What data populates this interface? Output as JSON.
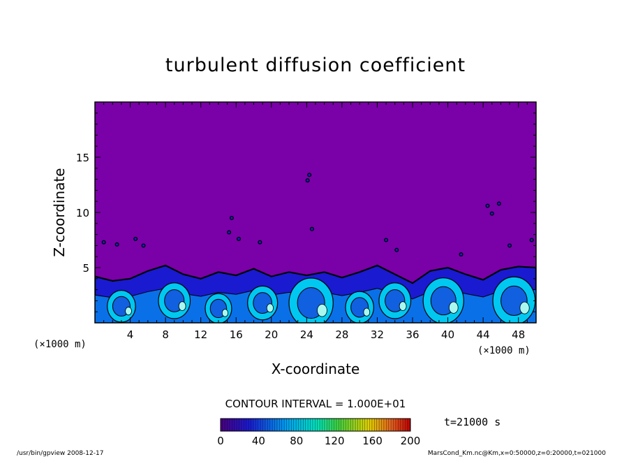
{
  "chart_data": {
    "type": "heatmap",
    "title": "turbulent diffusion coefficient",
    "xlabel": "X-coordinate",
    "ylabel": "Z-coordinate",
    "x_unit": "(×1000 m)",
    "y_unit": "(×1000 m)",
    "xlim": [
      0,
      50
    ],
    "ylim": [
      0,
      20
    ],
    "x_ticks": [
      4,
      8,
      12,
      16,
      20,
      24,
      28,
      32,
      36,
      40,
      44,
      48
    ],
    "y_ticks": [
      5,
      10,
      15
    ],
    "contour_interval": "CONTOUR INTERVAL = 1.000E+01",
    "time_label": "t=21000 s",
    "colorbar": {
      "min": 0,
      "max": 200,
      "ticks": [
        0,
        40,
        80,
        120,
        160,
        200
      ]
    },
    "colors": {
      "background_field": "#7a00a8",
      "low": "#1a1ad0",
      "mid": "#00c8f0",
      "high": "#a8f8f0"
    },
    "mixed_layer_top": [
      [
        0,
        4.2
      ],
      [
        2,
        3.8
      ],
      [
        4,
        4.0
      ],
      [
        6,
        4.7
      ],
      [
        8,
        5.2
      ],
      [
        10,
        4.4
      ],
      [
        12,
        4.0
      ],
      [
        14,
        4.6
      ],
      [
        16,
        4.3
      ],
      [
        18,
        4.9
      ],
      [
        20,
        4.2
      ],
      [
        22,
        4.6
      ],
      [
        24,
        4.3
      ],
      [
        26,
        4.6
      ],
      [
        28,
        4.1
      ],
      [
        30,
        4.6
      ],
      [
        32,
        5.2
      ],
      [
        34,
        4.4
      ],
      [
        36,
        3.6
      ],
      [
        38,
        4.7
      ],
      [
        40,
        5.0
      ],
      [
        42,
        4.4
      ],
      [
        44,
        3.9
      ],
      [
        46,
        4.8
      ],
      [
        48,
        5.1
      ],
      [
        50,
        5.0
      ]
    ],
    "eddies": [
      {
        "x": 3,
        "z": 1.5,
        "r": 1.6
      },
      {
        "x": 9,
        "z": 2.0,
        "r": 1.8
      },
      {
        "x": 14,
        "z": 1.3,
        "r": 1.5
      },
      {
        "x": 19,
        "z": 1.8,
        "r": 1.7
      },
      {
        "x": 24.5,
        "z": 1.8,
        "r": 2.5
      },
      {
        "x": 30,
        "z": 1.4,
        "r": 1.6
      },
      {
        "x": 34,
        "z": 2.0,
        "r": 1.8
      },
      {
        "x": 39.5,
        "z": 2.0,
        "r": 2.3
      },
      {
        "x": 47.5,
        "z": 2.0,
        "r": 2.4
      }
    ],
    "blobs": [
      {
        "x": 1.0,
        "z": 7.3
      },
      {
        "x": 2.5,
        "z": 7.1
      },
      {
        "x": 4.6,
        "z": 7.6
      },
      {
        "x": 5.5,
        "z": 7.0
      },
      {
        "x": 15.2,
        "z": 8.2
      },
      {
        "x": 15.5,
        "z": 9.5
      },
      {
        "x": 16.3,
        "z": 7.6
      },
      {
        "x": 18.7,
        "z": 7.3
      },
      {
        "x": 24.1,
        "z": 12.9
      },
      {
        "x": 24.3,
        "z": 13.4
      },
      {
        "x": 24.6,
        "z": 8.5
      },
      {
        "x": 33.0,
        "z": 7.5
      },
      {
        "x": 34.2,
        "z": 6.6
      },
      {
        "x": 41.5,
        "z": 6.2
      },
      {
        "x": 44.5,
        "z": 10.6
      },
      {
        "x": 45.8,
        "z": 10.8
      },
      {
        "x": 45.0,
        "z": 9.9
      },
      {
        "x": 47.0,
        "z": 7.0
      },
      {
        "x": 49.5,
        "z": 7.5
      }
    ],
    "footer_left": "/usr/bin/gpview   2008-12-17",
    "footer_right": "MarsCond_Km.nc@Km,x=0:50000,z=0:20000,t=021000"
  }
}
